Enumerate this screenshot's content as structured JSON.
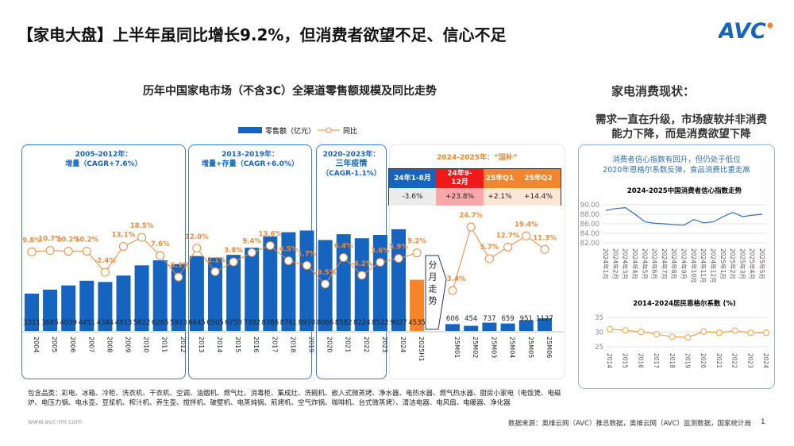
{
  "title": "【家电大盘】上半年虽同比增长9.2%，但消费者欲望不足、信心不足",
  "logo": "AVC",
  "colors": {
    "bar": "#1565c0",
    "bar_h1": "#f5842c",
    "line": "#f08a3c",
    "engel": "#f2a23a",
    "conf": "#2e6db4"
  },
  "chart_data": [
    {
      "type": "bar+line",
      "title": "历年中国家电市场（不含3C）全渠道零售额规模及同比走势",
      "legend": {
        "bar": "零售额（亿元）",
        "line": "同比",
        "placement": "top"
      },
      "categories": [
        "2004",
        "2005",
        "2006",
        "2007",
        "2008",
        "2009",
        "2010",
        "2011",
        "2012",
        "2013",
        "2014",
        "2015",
        "2016",
        "2017",
        "2018",
        "2019",
        "2020",
        "2021",
        "2022",
        "2023",
        "2024",
        "2025H1"
      ],
      "values": [
        3311,
        3665,
        4039,
        4451,
        4344,
        4913,
        5822,
        6265,
        5933,
        6645,
        6505,
        6750,
        7382,
        8386,
        8761,
        8910,
        8066,
        8582,
        8224,
        8522,
        9027,
        4535
      ],
      "yoy": [
        "9.8%",
        "10.7%",
        "10.2%",
        "10.2%",
        "-2.4%",
        "13.1%",
        "18.5%",
        "7.6%",
        "-5.3%",
        "12.0%",
        "-2.1%",
        "3.8%",
        "9.4%",
        "13.6%",
        "4.5%",
        "1.7%",
        "-9.5%",
        "6.4%",
        "-4.2%",
        "3.6%",
        "5.9%",
        "9.2%"
      ],
      "monthly": {
        "label": "分月走势",
        "categories": [
          "25M01",
          "25M02",
          "25M03",
          "25M04",
          "25M05",
          "25M06"
        ],
        "values": [
          606,
          454,
          737,
          659,
          951,
          1127
        ],
        "yoy": [
          "-13.4%",
          "24.7%",
          "5.7%",
          "12.7%",
          "19.4%",
          "11.3%"
        ]
      },
      "periods": [
        {
          "title": "2005-2012年：",
          "subtitle": "增量（CAGR+7.6%）"
        },
        {
          "title": "2013-2019年：",
          "subtitle": "增量+存量（CAGR+6.0%）"
        },
        {
          "title": "2020-2023年：",
          "subtitle": "三年疫情",
          "note": "（CAGR-1.1%）"
        },
        {
          "title": "2024-2025年：“国补”"
        }
      ],
      "table": [
        {
          "h": "24年1-8月",
          "v": "-3.6%"
        },
        {
          "h": "24年9-12月",
          "v": "+23.8%"
        },
        {
          "h": "25年Q1",
          "v": "+2.1%"
        },
        {
          "h": "25年Q2",
          "v": "+14.4%"
        }
      ]
    },
    {
      "type": "line",
      "title": "2024-2025中国消费者信心指数走势",
      "categories": [
        "2024年1月",
        "2024年2月",
        "2024年3月",
        "2024年4月",
        "2024年5月",
        "2024年6月",
        "2024年7月",
        "2024年8月",
        "2024年9月",
        "2024年10月",
        "2024年11月",
        "2024年12月",
        "2025年1月",
        "2025年2月",
        "2025年3月",
        "2025年4月",
        "2025年5月"
      ],
      "values": [
        88.8,
        89.2,
        89.4,
        88.0,
        86.4,
        86.1,
        86.0,
        85.8,
        85.7,
        86.9,
        86.2,
        86.4,
        87.5,
        88.4,
        87.5,
        87.8,
        88.0
      ],
      "yticks": [
        "90.00",
        "88.00",
        "86.00",
        "84.00",
        "82.00"
      ],
      "ylim": [
        82,
        90
      ]
    },
    {
      "type": "line",
      "title": "2014-2024居民恩格尔系数 (%)",
      "categories": [
        "2014",
        "2015",
        "2016",
        "2017",
        "2018",
        "2019",
        "2020",
        "2021",
        "2022",
        "2023",
        "2024"
      ],
      "values": [
        31.0,
        30.6,
        30.1,
        29.3,
        28.4,
        28.2,
        30.2,
        29.8,
        30.5,
        29.8,
        29.8
      ],
      "yticks": [
        "35",
        "30",
        "25"
      ],
      "ylim": [
        25,
        35
      ]
    }
  ],
  "right": {
    "heading": "家电消费现状：",
    "line1": "需求一直在升级，市场疲软并非消费",
    "line2": "能力下降，而是消费欲望下降",
    "note1": "消费者信心指数有回升，但仍处于低位",
    "note2": "2020年恩格尔系数反弹，食品消费比重走高"
  },
  "footer": {
    "categories": "包含品类：彩电、冰箱、冷柜、洗衣机、干衣机、空调、油烟机、燃气灶、消毒柜、集成灶、洗碗机、嵌入式微蒸烤、净水器、电热水器、燃气热水器、厨房小家电（电饭煲、电磁炉、电压力锅、电水壶、豆浆机、榨汁机、养生壶、搅拌机、破壁机、电蒸炖锅、煎烤机、空气炸锅、咖啡机、台式微蒸烤）、清洁电器、电风扇、电暖器、净化器",
    "url": "www.avc-mr.com",
    "source": "数据来源：奥维云网（AVC）推总数据，奥维云网（AVC）监测数据，国家统计局",
    "page": "1"
  }
}
